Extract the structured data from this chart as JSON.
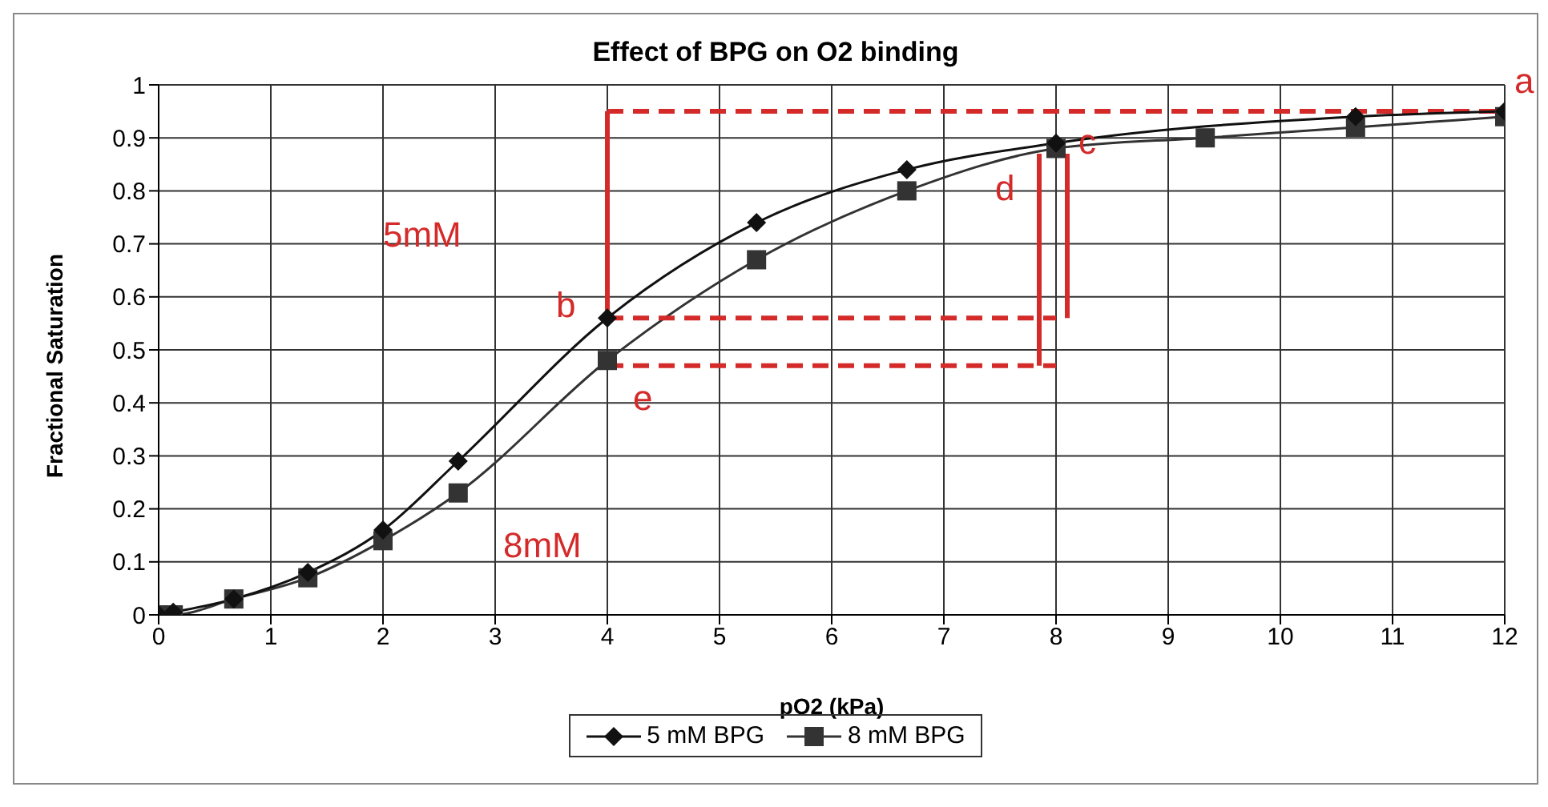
{
  "chart_data": {
    "type": "line",
    "title": "Effect of BPG on O2 binding",
    "xlabel": "pO2 (kPa)",
    "ylabel": "Fractional Saturation",
    "x": [
      0,
      0.13,
      0.67,
      1.33,
      2,
      2.67,
      4,
      5.33,
      6.67,
      8,
      9.33,
      10.67,
      12
    ],
    "series": [
      {
        "name": "5 mM BPG",
        "color": "#111111",
        "marker": "diamond",
        "values": [
          0,
          0.005,
          0.03,
          0.08,
          0.16,
          0.29,
          0.56,
          0.74,
          0.84,
          0.89,
          null,
          0.94,
          0.95
        ]
      },
      {
        "name": "8 mM BPG",
        "color": "#333333",
        "marker": "square",
        "values": [
          0,
          0,
          0.03,
          0.07,
          0.14,
          0.23,
          0.48,
          0.67,
          0.8,
          0.88,
          0.9,
          0.92,
          0.94
        ]
      },
      {
        "color": "#d42a2a",
        "line_style": "dashed",
        "marker": "none",
        "x": [
          4,
          12
        ],
        "values": [
          0.95,
          0.95
        ]
      },
      {
        "color": "#d42a2a",
        "line_style": "dashed",
        "marker": "none",
        "x": [
          4,
          8
        ],
        "values": [
          0.56,
          0.56
        ]
      },
      {
        "color": "#d42a2a",
        "line_style": "dashed",
        "marker": "none",
        "x": [
          4,
          8
        ],
        "values": [
          0.47,
          0.47
        ]
      },
      {
        "color": "#d42a2a",
        "line_style": "solid",
        "marker": "none",
        "x": [
          4,
          4
        ],
        "values": [
          0.56,
          0.95
        ]
      },
      {
        "color": "#d42a2a",
        "line_style": "solid",
        "marker": "none",
        "x": [
          7.85,
          7.85
        ],
        "values": [
          0.47,
          0.87
        ]
      },
      {
        "color": "#d42a2a",
        "line_style": "solid",
        "marker": "none",
        "x": [
          8.1,
          8.1
        ],
        "values": [
          0.56,
          0.87
        ]
      }
    ],
    "annotations": [
      "a",
      "b",
      "c",
      "d",
      "e",
      "5mM",
      "8mM"
    ],
    "xlim": [
      0,
      12
    ],
    "xticks": [
      0,
      1,
      2,
      3,
      4,
      5,
      6,
      7,
      8,
      9,
      10,
      11,
      12
    ],
    "ylim": [
      0,
      1
    ],
    "yticks": [
      0,
      0.1,
      0.2,
      0.3,
      0.4,
      0.5,
      0.6,
      0.7,
      0.8,
      0.9,
      1
    ],
    "grid": true,
    "legend": "bottom"
  }
}
